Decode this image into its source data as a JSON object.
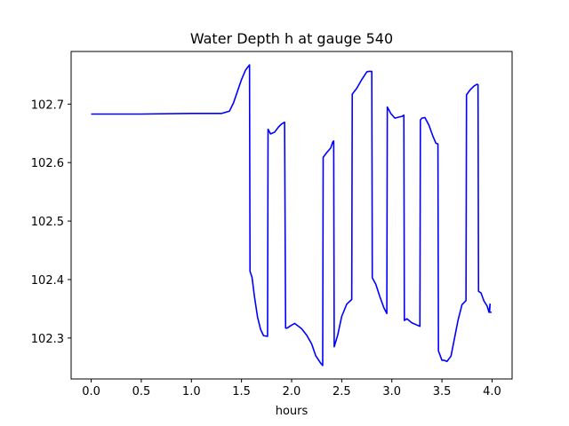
{
  "chart_data": {
    "type": "line",
    "title": "Water Depth h at gauge 540",
    "xlabel": "hours",
    "ylabel": "",
    "xlim": [
      -0.2,
      4.2
    ],
    "ylim": [
      102.23,
      102.79
    ],
    "xticks": [
      0.0,
      0.5,
      1.0,
      1.5,
      2.0,
      2.5,
      3.0,
      3.5,
      4.0
    ],
    "xtick_labels": [
      "0.0",
      "0.5",
      "1.0",
      "1.5",
      "2.0",
      "2.5",
      "3.0",
      "3.5",
      "4.0"
    ],
    "yticks": [
      102.3,
      102.4,
      102.5,
      102.6,
      102.7
    ],
    "ytick_labels": [
      "102.3",
      "102.4",
      "102.5",
      "102.6",
      "102.7"
    ],
    "grid": false,
    "color": "#0000ff",
    "series": [
      {
        "x": [
          0.0,
          0.5,
          1.0,
          1.3,
          1.38,
          1.42,
          1.46,
          1.5,
          1.54,
          1.57,
          1.58,
          1.585,
          1.605,
          1.63,
          1.66,
          1.69,
          1.72,
          1.76,
          1.765,
          1.79,
          1.83,
          1.87,
          1.9,
          1.93,
          1.94,
          1.955,
          1.99,
          2.03,
          2.1,
          2.15,
          2.2,
          2.24,
          2.29,
          2.31,
          2.315,
          2.35,
          2.39,
          2.41,
          2.42,
          2.425,
          2.46,
          2.5,
          2.55,
          2.6,
          2.605,
          2.65,
          2.7,
          2.75,
          2.77,
          2.8,
          2.805,
          2.84,
          2.88,
          2.92,
          2.95,
          2.955,
          2.99,
          3.03,
          3.1,
          3.12,
          3.125,
          3.15,
          3.2,
          3.28,
          3.285,
          3.3,
          3.33,
          3.37,
          3.41,
          3.44,
          3.46,
          3.465,
          3.5,
          3.52,
          3.55,
          3.59,
          3.62,
          3.66,
          3.7,
          3.74,
          3.745,
          3.78,
          3.82,
          3.85,
          3.86,
          3.865,
          3.89,
          3.92,
          3.95,
          3.97,
          3.98,
          3.975,
          3.995
        ],
        "y": [
          102.683,
          102.683,
          102.684,
          102.684,
          102.688,
          102.702,
          102.722,
          102.742,
          102.758,
          102.765,
          102.767,
          102.414,
          102.404,
          102.37,
          102.336,
          102.315,
          102.304,
          102.303,
          102.657,
          102.649,
          102.652,
          102.661,
          102.666,
          102.669,
          102.317,
          102.317,
          102.321,
          102.325,
          102.316,
          102.305,
          102.29,
          102.27,
          102.257,
          102.253,
          102.609,
          102.617,
          102.625,
          102.635,
          102.637,
          102.285,
          102.305,
          102.337,
          102.358,
          102.366,
          102.717,
          102.727,
          102.742,
          102.755,
          102.756,
          102.756,
          102.403,
          102.392,
          102.371,
          102.352,
          102.342,
          102.695,
          102.684,
          102.676,
          102.679,
          102.681,
          102.33,
          102.333,
          102.326,
          102.32,
          102.673,
          102.676,
          102.677,
          102.664,
          102.645,
          102.633,
          102.632,
          102.278,
          102.262,
          102.262,
          102.26,
          102.269,
          102.295,
          102.33,
          102.357,
          102.364,
          102.716,
          102.724,
          102.731,
          102.734,
          102.733,
          102.38,
          102.377,
          102.363,
          102.355,
          102.344,
          102.358,
          102.344,
          102.344
        ]
      }
    ]
  }
}
